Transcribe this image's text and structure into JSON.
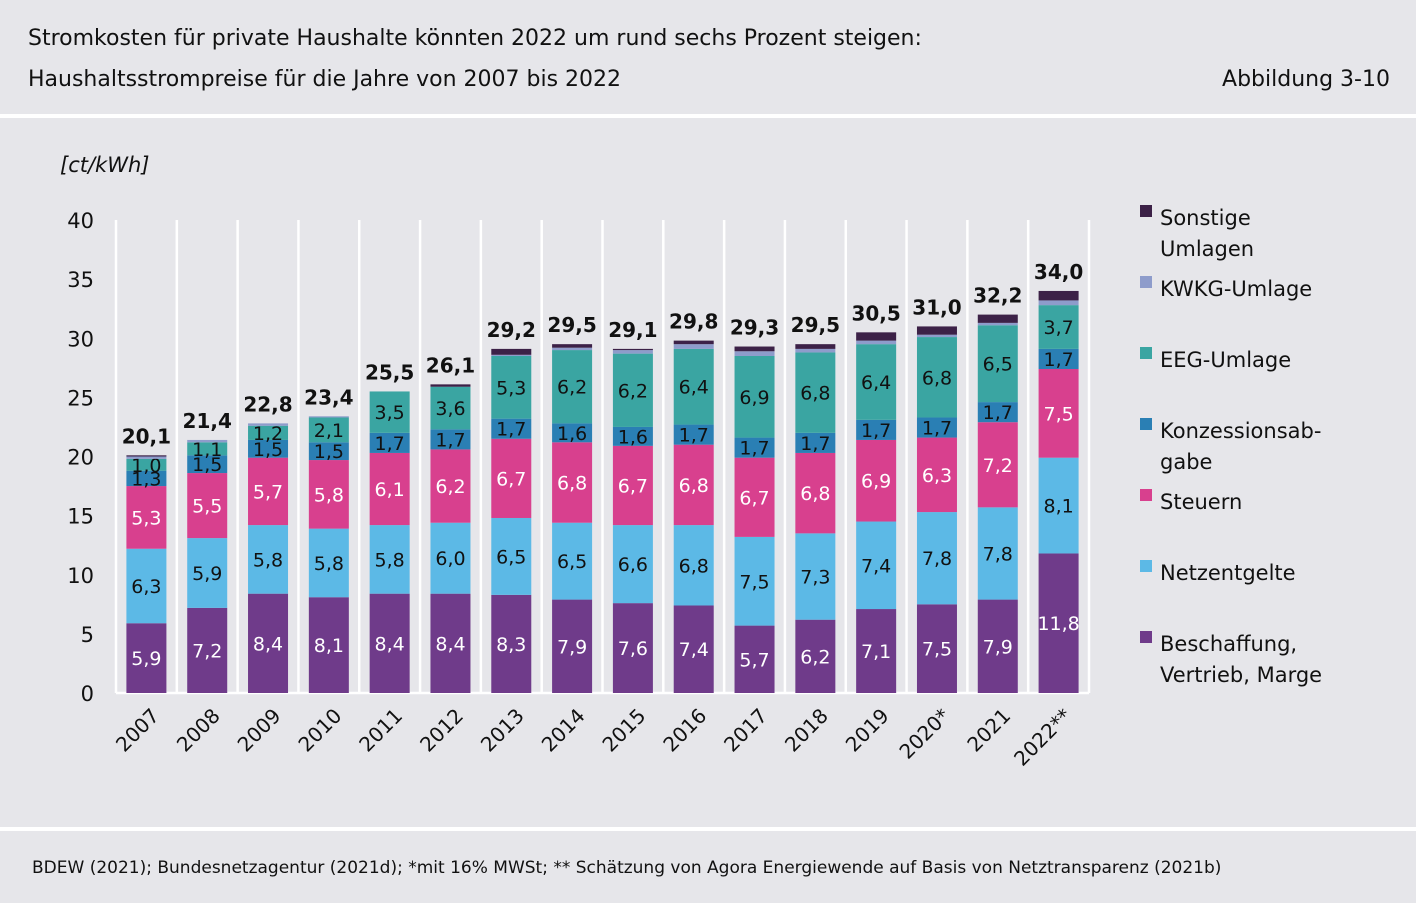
{
  "header": {
    "title_line1": "Stromkosten für private Haushalte könnten 2022 um rund sechs Prozent steigen:",
    "title_line2": "Haushaltsstrompreise für die Jahre von 2007 bis 2022",
    "figure_label": "Abbildung 3-10"
  },
  "source": "BDEW (2021); Bundesnetzagentur (2021d); *mit 16% MWSt; ** Schätzung von Agora Energiewende auf Basis von Netztransparenz (2021b)",
  "chart_data": {
    "type": "bar",
    "stacked": true,
    "unit_label": "[ct/kWh]",
    "ylim": [
      0,
      40
    ],
    "yticks": [
      0,
      5,
      10,
      15,
      20,
      25,
      30,
      35,
      40
    ],
    "grid": "vertical",
    "legend_position": "right",
    "categories": [
      "2007",
      "2008",
      "2009",
      "2010",
      "2011",
      "2012",
      "2013",
      "2014",
      "2015",
      "2016",
      "2017",
      "2018",
      "2019",
      "2020*",
      "2021",
      "2022**"
    ],
    "totals": [
      "20,1",
      "21,4",
      "22,8",
      "23,4",
      "25,5",
      "26,1",
      "29,2",
      "29,5",
      "29,1",
      "29,8",
      "29,3",
      "29,5",
      "30,5",
      "31,0",
      "32,2",
      "34,0"
    ],
    "series": [
      {
        "name": "Beschaffung, Vertrieb, Marge",
        "color": "#6f3b8a",
        "label_color": "#ffffff",
        "values": [
          5.9,
          7.2,
          8.4,
          8.1,
          8.4,
          8.4,
          8.3,
          7.9,
          7.6,
          7.4,
          5.7,
          6.2,
          7.1,
          7.5,
          7.9,
          11.8
        ]
      },
      {
        "name": "Netzentgelte",
        "color": "#5cb9e6",
        "label_color": "#111111",
        "values": [
          6.3,
          5.9,
          5.8,
          5.8,
          5.8,
          6.0,
          6.5,
          6.5,
          6.6,
          6.8,
          7.5,
          7.3,
          7.4,
          7.8,
          7.8,
          8.1
        ]
      },
      {
        "name": "Steuern",
        "color": "#d8408e",
        "label_color": "#ffffff",
        "values": [
          5.3,
          5.5,
          5.7,
          5.8,
          6.1,
          6.2,
          6.7,
          6.8,
          6.7,
          6.8,
          6.7,
          6.8,
          6.9,
          6.3,
          7.2,
          7.5
        ]
      },
      {
        "name": "Konzessionsab-gabe",
        "color": "#2a7fb4",
        "label_color": "#111111",
        "values": [
          1.3,
          1.5,
          1.5,
          1.5,
          1.7,
          1.7,
          1.7,
          1.6,
          1.6,
          1.7,
          1.7,
          1.7,
          1.7,
          1.7,
          1.7,
          1.7
        ]
      },
      {
        "name": "EEG-Umlage",
        "color": "#3aa5a2",
        "label_color": "#111111",
        "values": [
          1.0,
          1.1,
          1.2,
          2.1,
          3.5,
          3.6,
          5.3,
          6.2,
          6.2,
          6.4,
          6.9,
          6.8,
          6.4,
          6.8,
          6.5,
          3.7
        ]
      },
      {
        "name": "KWKG-Umlage",
        "color": "#8e9ccb",
        "label_color": "#111111",
        "values": [
          0.2,
          0.2,
          0.2,
          0.1,
          0.0,
          0.0,
          0.1,
          0.2,
          0.3,
          0.4,
          0.4,
          0.3,
          0.3,
          0.2,
          0.2,
          0.4
        ]
      },
      {
        "name": "Sonstige Umlagen",
        "color": "#3c2147",
        "label_color": "#ffffff",
        "values": [
          0.1,
          0.0,
          0.0,
          0.0,
          0.0,
          0.2,
          0.5,
          0.3,
          0.1,
          0.3,
          0.4,
          0.4,
          0.7,
          0.7,
          0.7,
          0.8
        ]
      }
    ],
    "legend": [
      {
        "line1": "Sonstige",
        "line2": "Umlagen",
        "series": 6
      },
      {
        "line1": "KWKG-Umlage",
        "line2": "",
        "series": 5
      },
      {
        "line1": "EEG-Umlage",
        "line2": "",
        "series": 4
      },
      {
        "line1": "Konzessionsab-",
        "line2": "gabe",
        "series": 3
      },
      {
        "line1": "Steuern",
        "line2": "",
        "series": 2
      },
      {
        "line1": "Netzentgelte",
        "line2": "",
        "series": 1
      },
      {
        "line1": "Beschaffung,",
        "line2": "Vertrieb, Marge",
        "series": 0
      }
    ]
  }
}
